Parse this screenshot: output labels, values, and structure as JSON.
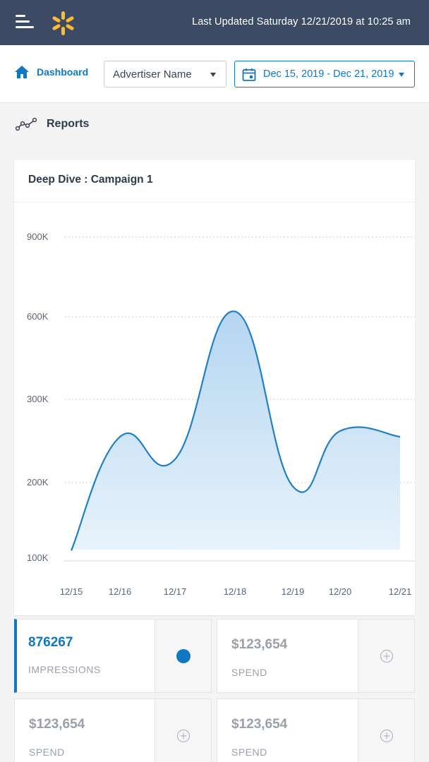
{
  "header": {
    "last_updated": "Last Updated Saturday 12/21/2019 at 10:25 am",
    "menu_icon": "hamburger-menu-icon",
    "logo_icon": "walmart-spark-logo",
    "bg_color": "#3c4b63",
    "logo_color": "#fdbb30"
  },
  "toolbar": {
    "dashboard_label": "Dashboard",
    "home_icon": "home-icon",
    "advertiser_select": "Advertiser Name",
    "date_range": "Dec 15, 2019 - Dec 21, 2019",
    "calendar_icon": "calendar-icon",
    "accent_color": "#1077c4"
  },
  "section": {
    "title": "Reports",
    "icon": "trend-line-icon"
  },
  "card": {
    "title": "Deep Dive : Campaign 1"
  },
  "chart_data": {
    "type": "area",
    "x": [
      "12/15",
      "12/16",
      "12/17",
      "12/18",
      "12/19",
      "12/20",
      "12/21"
    ],
    "y_ticks": [
      "100K",
      "200K",
      "300K",
      "600K",
      "900K"
    ],
    "series": [
      {
        "values": [
          110000,
          255000,
          228000,
          620000,
          195000,
          262000,
          255000
        ]
      }
    ],
    "fill_color": "#b9d9f2",
    "line_color": "#1f80c8",
    "grid": "dotted horizontal"
  },
  "metrics": [
    {
      "value": "876267",
      "label": "IMPRESSIONS",
      "active": true
    },
    {
      "value": "$123,654",
      "label": "SPEND",
      "active": false
    },
    {
      "value": "$123,654",
      "label": "SPEND",
      "active": false
    },
    {
      "value": "$123,654",
      "label": "SPEND",
      "active": false
    }
  ]
}
